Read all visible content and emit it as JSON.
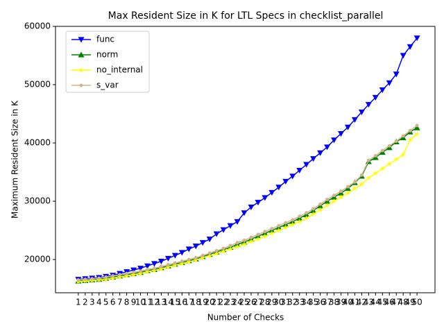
{
  "chart_data": {
    "type": "line",
    "title": "Max Resident Size in K for LTL Specs in checklist_parallel",
    "xlabel": "Number of Checks",
    "ylabel": "Maximum Resident Size in K",
    "x": [
      1,
      2,
      3,
      4,
      5,
      6,
      7,
      8,
      9,
      10,
      11,
      12,
      13,
      14,
      15,
      16,
      17,
      18,
      19,
      20,
      21,
      22,
      23,
      24,
      25,
      26,
      27,
      28,
      29,
      30,
      31,
      32,
      33,
      34,
      35,
      36,
      37,
      38,
      39,
      40,
      41,
      42,
      43,
      44,
      45,
      46,
      47,
      48,
      49,
      50
    ],
    "xlim": [
      -2.3,
      52.6
    ],
    "xticks": [
      1,
      2,
      3,
      4,
      5,
      6,
      7,
      8,
      9,
      10,
      11,
      12,
      13,
      14,
      15,
      16,
      17,
      18,
      19,
      20,
      21,
      22,
      23,
      24,
      25,
      26,
      27,
      28,
      29,
      30,
      31,
      32,
      33,
      34,
      35,
      36,
      37,
      38,
      39,
      40,
      41,
      42,
      43,
      44,
      45,
      46,
      47,
      48,
      49,
      50
    ],
    "ylim": [
      14300,
      60000
    ],
    "yticks": [
      20000,
      30000,
      40000,
      50000,
      60000
    ],
    "legend": "upper left",
    "series": [
      {
        "name": "func",
        "color": "#0000ff",
        "marker": "triangle-down",
        "values": [
          16600,
          16700,
          16800,
          16900,
          17100,
          17300,
          17600,
          17900,
          18200,
          18500,
          18900,
          19300,
          19700,
          20200,
          20700,
          21200,
          21800,
          22300,
          22900,
          23500,
          24400,
          25100,
          25800,
          26500,
          28000,
          29000,
          29800,
          30600,
          31500,
          32400,
          33400,
          34300,
          35300,
          36300,
          37300,
          38300,
          39300,
          40500,
          41600,
          42700,
          44000,
          45300,
          46600,
          47800,
          49100,
          50300,
          51800,
          55000,
          56500,
          58000
        ]
      },
      {
        "name": "norm",
        "color": "#008000",
        "marker": "triangle-up",
        "values": [
          16300,
          16400,
          16500,
          16600,
          16800,
          17000,
          17200,
          17400,
          17600,
          17800,
          18100,
          18300,
          18600,
          18900,
          19200,
          19500,
          19800,
          20100,
          20500,
          20900,
          21300,
          21700,
          22100,
          22600,
          23000,
          23500,
          24000,
          24500,
          25000,
          25500,
          26000,
          26500,
          27100,
          27700,
          28400,
          29200,
          30000,
          30700,
          31400,
          32200,
          33200,
          34300,
          36800,
          37500,
          38400,
          39200,
          40200,
          40900,
          41900,
          42600
        ]
      },
      {
        "name": "no_internal",
        "color": "#ffff00",
        "marker": "star",
        "values": [
          16200,
          16300,
          16400,
          16500,
          16600,
          16800,
          17000,
          17200,
          17400,
          17600,
          17900,
          18100,
          18400,
          18700,
          19000,
          19300,
          19600,
          19900,
          20300,
          20600,
          21000,
          21400,
          21800,
          22200,
          22600,
          23100,
          23500,
          24000,
          24500,
          25000,
          25500,
          26000,
          26500,
          27100,
          27800,
          28500,
          29300,
          30000,
          30700,
          31400,
          32200,
          32900,
          34000,
          34800,
          35600,
          36400,
          37200,
          38000,
          40500,
          41500
        ]
      },
      {
        "name": "s_var",
        "color": "#d2b48c",
        "marker": "circle",
        "values": [
          16500,
          16600,
          16700,
          16800,
          17000,
          17200,
          17400,
          17600,
          17800,
          18000,
          18300,
          18500,
          18800,
          19100,
          19400,
          19700,
          20000,
          20300,
          20700,
          21100,
          21500,
          21900,
          22400,
          22900,
          23300,
          23800,
          24300,
          24800,
          25300,
          25800,
          26300,
          26800,
          27400,
          28000,
          28700,
          29500,
          30300,
          31000,
          31700,
          32500,
          33300,
          34500,
          37000,
          37800,
          38700,
          39500,
          40300,
          41200,
          42100,
          43000
        ]
      }
    ]
  }
}
